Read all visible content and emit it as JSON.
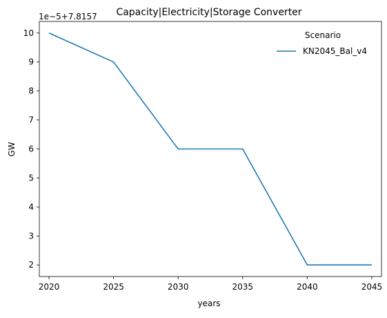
{
  "chart_data": {
    "type": "line",
    "title": "Capacity|Electricity|Storage Converter",
    "xlabel": "years",
    "ylabel": "GW",
    "offset_label": "1e−5+7.8157",
    "x": [
      2020,
      2025,
      2030,
      2035,
      2040,
      2045
    ],
    "x_ticks": [
      "2020",
      "2025",
      "2030",
      "2035",
      "2040",
      "2045"
    ],
    "y_ticks": [
      "2",
      "3",
      "4",
      "5",
      "6",
      "7",
      "8",
      "9",
      "10"
    ],
    "xlim": [
      2019.25,
      2045.75
    ],
    "ylim": [
      1.6,
      10.4
    ],
    "series": [
      {
        "name": "KN2045_Bal_v4",
        "color": "#1f77b4",
        "values": [
          10,
          9,
          6,
          6,
          2,
          2
        ]
      }
    ],
    "legend": {
      "title": "Scenario",
      "placement": "top-right"
    },
    "grid": false
  }
}
